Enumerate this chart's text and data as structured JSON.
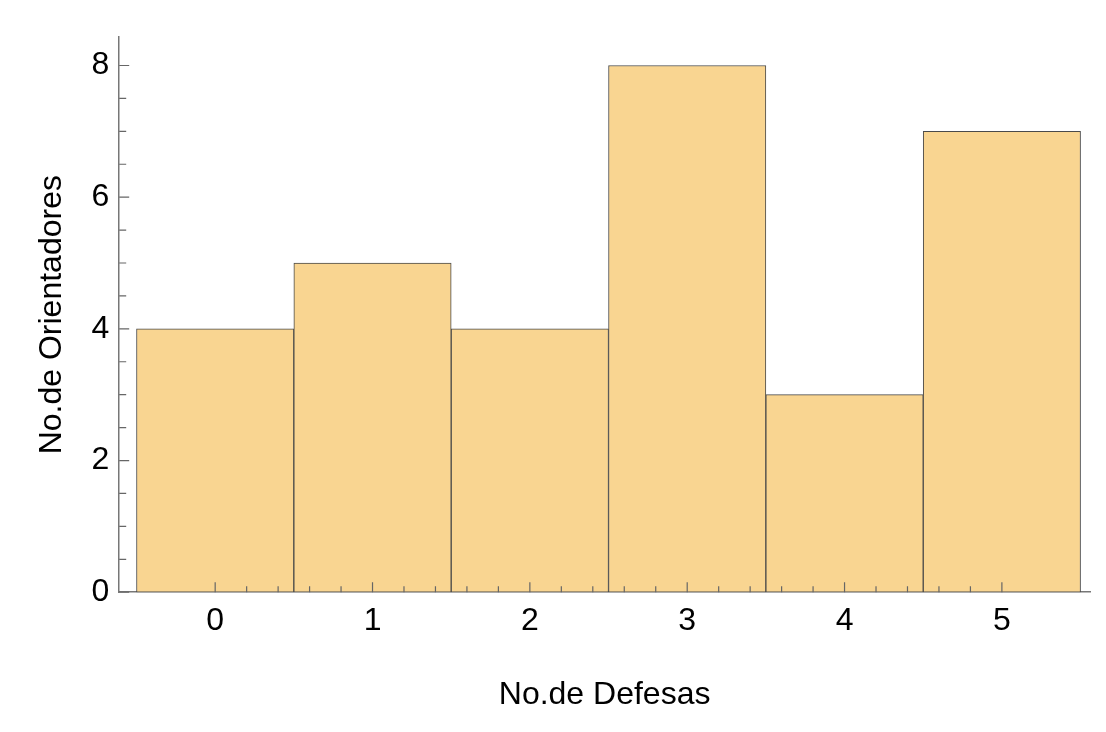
{
  "chart_data": {
    "type": "histogram",
    "xlabel": "No.de Defesas",
    "ylabel": "No.de Orientadores",
    "bins": [
      -0.5,
      0.5,
      1.5,
      2.5,
      3.5,
      4.5,
      5.5
    ],
    "values": [
      4,
      5,
      4,
      8,
      3,
      7
    ],
    "color": "#f9d591",
    "xlim": [
      -0.61,
      5.56
    ],
    "xticks": [
      0,
      {
        "value": 0.2,
        "label": null
      },
      {
        "value": 0.4,
        "label": null
      },
      {
        "value": 0.6,
        "label": null
      },
      {
        "value": 0.8,
        "label": null
      },
      1,
      {
        "value": 1.2,
        "label": null
      },
      {
        "value": 1.4,
        "label": null
      },
      {
        "value": 1.6,
        "label": null
      },
      {
        "value": 1.8,
        "label": null
      },
      2,
      {
        "value": 2.2,
        "label": null
      },
      {
        "value": 2.4,
        "label": null
      },
      {
        "value": 2.6,
        "label": null
      },
      {
        "value": 2.8,
        "label": null
      },
      3,
      {
        "value": 3.2,
        "label": null
      },
      {
        "value": 3.4,
        "label": null
      },
      {
        "value": 3.6,
        "label": null
      },
      {
        "value": 3.8,
        "label": null
      },
      4,
      {
        "value": 4.2,
        "label": null
      },
      {
        "value": 4.4,
        "label": null
      },
      {
        "value": 4.6,
        "label": null
      },
      {
        "value": 4.8,
        "label": null
      },
      5
    ],
    "ylim": [
      0,
      8.43
    ],
    "yticks": [
      0,
      {
        "value": 0.5,
        "label": null
      },
      {
        "value": 1,
        "label": null
      },
      {
        "value": 1.5,
        "label": null
      },
      2,
      {
        "value": 2.5,
        "label": null
      },
      {
        "value": 3,
        "label": null
      },
      {
        "value": 3.5,
        "label": null
      },
      4,
      {
        "value": 4.5,
        "label": null
      },
      {
        "value": 5,
        "label": null
      },
      {
        "value": 5.5,
        "label": null
      },
      6,
      {
        "value": 6.5,
        "label": null
      },
      {
        "value": 7,
        "label": null
      },
      {
        "value": 7.5,
        "label": null
      },
      8
    ],
    "grid": false
  }
}
